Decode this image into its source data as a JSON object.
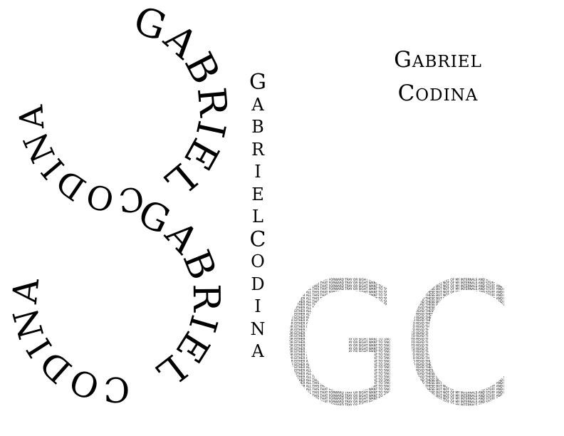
{
  "ring_top": {
    "first": "GABRIEL",
    "last": "CODINA"
  },
  "ring_bottom": {
    "first": "GABRIEL",
    "last": "CODINA"
  },
  "vertical_name": {
    "letters": [
      "G",
      "A",
      "B",
      "R",
      "I",
      "E",
      "L",
      "C",
      "O",
      "D",
      "I",
      "N",
      "A"
    ]
  },
  "stacked_name": {
    "line1": "Gabriel",
    "line2": "Codina"
  },
  "monogram": {
    "letters": "GC",
    "filler_text": "AND NOR EITHER ALL THIS THAT FORWARD TRAY OR SIGHT WANT TO TAKE THAT STUFF TO READ THESE BUT NOT OF MY INTERNALS AND STUFF AND MOR EITHER RANDOM THE STUFF THAT FORWARD OR SIGHT TAKE THAT AND STUFF IT THE ALL THIS STUFF THAT YOU CAN TAKE OR SIGHT WANT TO TAKE THAT STUFF TO READ THESE BUT NOT OF MY BUT RANDOM THE RANDOM STUFF YOU CAN GOT IT THE ALL RANDOM YOU CAN TAKE WANT TO STUFF TO SIGHT INTERNALS AND MOR RANDOM FORWARD"
  }
}
